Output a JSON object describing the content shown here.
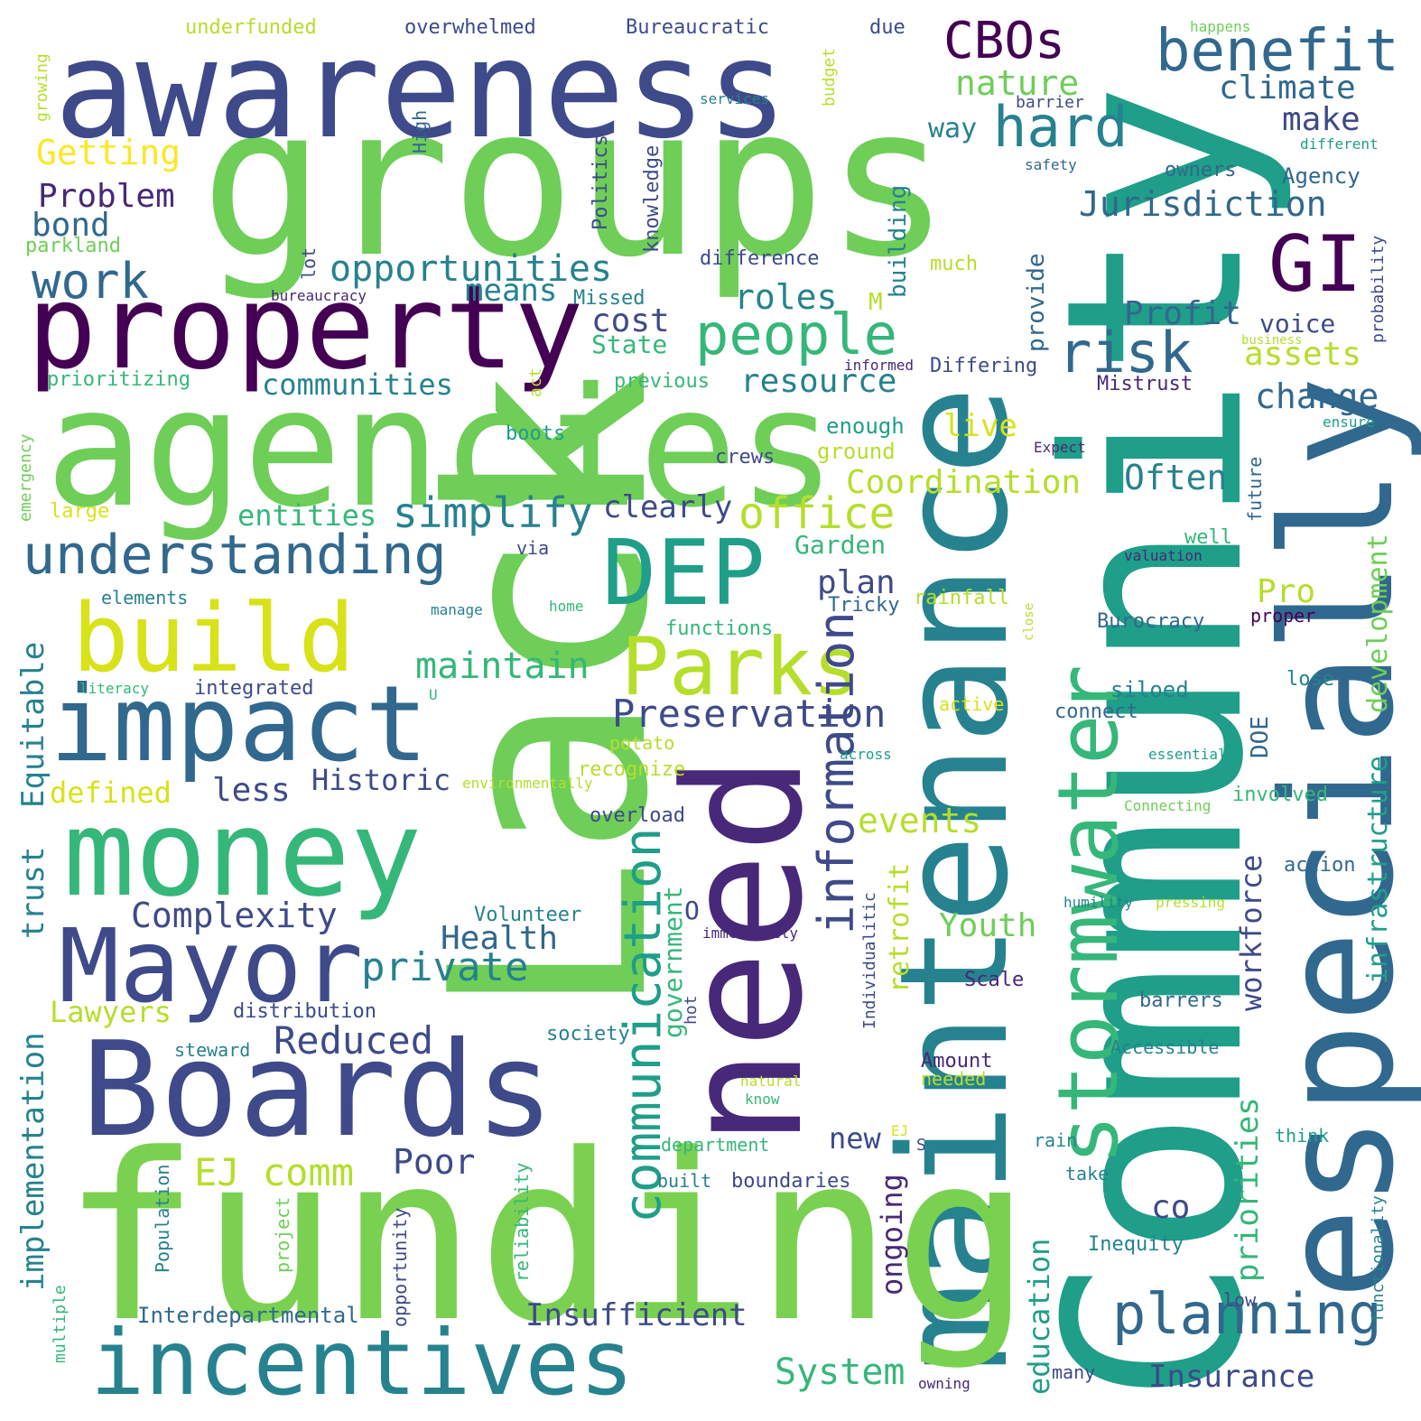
{
  "palette": [
    "#440154",
    "#482878",
    "#3e4a89",
    "#31688e",
    "#26828e",
    "#1f9e89",
    "#35b779",
    "#6ece58",
    "#b5de2b",
    "#fde725"
  ],
  "words": [
    {
      "text": "Community",
      "color": "#1f9e89"
    },
    {
      "text": "Lack",
      "color": "#6ece58"
    },
    {
      "text": "groups",
      "color": "#6ece58"
    },
    {
      "text": "maintenance",
      "color": "#26828e"
    },
    {
      "text": "funding",
      "color": "#7ad151"
    },
    {
      "text": "agencies",
      "color": "#6ece58"
    },
    {
      "text": "especially",
      "color": "#31688e"
    },
    {
      "text": "need",
      "color": "#482878"
    },
    {
      "text": "awareness",
      "color": "#3e4a89"
    },
    {
      "text": "Boards",
      "color": "#3e4a89"
    },
    {
      "text": "property",
      "color": "#440154"
    },
    {
      "text": "money",
      "color": "#35b779"
    },
    {
      "text": "impact",
      "color": "#31688e"
    },
    {
      "text": "Mayor",
      "color": "#3e4a89"
    },
    {
      "text": "incentives",
      "color": "#26828e"
    },
    {
      "text": "build",
      "color": "#d8e219"
    },
    {
      "text": "DEP",
      "color": "#1f9e89"
    },
    {
      "text": "Parks",
      "color": "#b5de2b"
    },
    {
      "text": "stormwater",
      "color": "#35b779"
    },
    {
      "text": "GI",
      "color": "#440154"
    },
    {
      "text": "benefit",
      "color": "#31688e"
    },
    {
      "text": "CBOs",
      "color": "#440154"
    },
    {
      "text": "hard",
      "color": "#26828e"
    },
    {
      "text": "risk",
      "color": "#31688e"
    },
    {
      "text": "people",
      "color": "#35b779"
    },
    {
      "text": "understanding",
      "color": "#31688e"
    },
    {
      "text": "information",
      "color": "#3e4a89"
    },
    {
      "text": "communication",
      "color": "#1f9e89"
    },
    {
      "text": "planning",
      "color": "#31688e"
    },
    {
      "text": "opportunities",
      "color": "#26828e"
    },
    {
      "text": "work",
      "color": "#31688e"
    },
    {
      "text": "Preservation",
      "color": "#3e4a89"
    },
    {
      "text": "simplify",
      "color": "#26828e"
    },
    {
      "text": "office",
      "color": "#b5de2b"
    },
    {
      "text": "private",
      "color": "#26828e"
    },
    {
      "text": "Coordination",
      "color": "#b5de2b"
    },
    {
      "text": "climate",
      "color": "#31688e"
    },
    {
      "text": "Jurisdiction",
      "color": "#31688e"
    },
    {
      "text": "nature",
      "color": "#6ece58"
    },
    {
      "text": "Getting",
      "color": "#fde725"
    },
    {
      "text": "Problem",
      "color": "#482878"
    },
    {
      "text": "bond",
      "color": "#31688e"
    },
    {
      "text": "make",
      "color": "#3e4a89"
    },
    {
      "text": "roles",
      "color": "#26828e"
    },
    {
      "text": "cost",
      "color": "#3e4a89"
    },
    {
      "text": "means",
      "color": "#26828e"
    },
    {
      "text": "Profit",
      "color": "#31688e"
    },
    {
      "text": "assets",
      "color": "#b5de2b"
    },
    {
      "text": "change",
      "color": "#31688e"
    },
    {
      "text": "resource",
      "color": "#26828e"
    },
    {
      "text": "communities",
      "color": "#26828e"
    },
    {
      "text": "entities",
      "color": "#35b779"
    },
    {
      "text": "Often",
      "color": "#26828e"
    },
    {
      "text": "live",
      "color": "#d8e219"
    },
    {
      "text": "clearly",
      "color": "#3e4a89"
    },
    {
      "text": "maintain",
      "color": "#35b779"
    },
    {
      "text": "Complexity",
      "color": "#3e4a89"
    },
    {
      "text": "Historic",
      "color": "#3e4a89"
    },
    {
      "text": "Equitable",
      "color": "#26828e"
    },
    {
      "text": "defined",
      "color": "#d8e219"
    },
    {
      "text": "less",
      "color": "#3e4a89"
    },
    {
      "text": "events",
      "color": "#b5de2b"
    },
    {
      "text": "Youth",
      "color": "#6ece58"
    },
    {
      "text": "Health",
      "color": "#31688e"
    },
    {
      "text": "Reduced",
      "color": "#3e4a89"
    },
    {
      "text": "EJ comm",
      "color": "#b5de2b"
    },
    {
      "text": "Poor",
      "color": "#3e4a89"
    },
    {
      "text": "System",
      "color": "#35b779"
    },
    {
      "text": "Insurance",
      "color": "#3e4a89"
    },
    {
      "text": "Insufficient",
      "color": "#3e4a89"
    },
    {
      "text": "Interdepartmental",
      "color": "#31688e"
    },
    {
      "text": "plan",
      "color": "#3e4a89"
    },
    {
      "text": "Pro",
      "color": "#b5de2b"
    },
    {
      "text": "Garden",
      "color": "#35b779"
    },
    {
      "text": "new",
      "color": "#3e4a89"
    },
    {
      "text": "co",
      "color": "#3e4a89"
    },
    {
      "text": "trust",
      "color": "#26828e"
    },
    {
      "text": "implementation",
      "color": "#26828e"
    },
    {
      "text": "Lawyers",
      "color": "#b5de2b"
    },
    {
      "text": "State",
      "color": "#35b779"
    },
    {
      "text": "building",
      "color": "#26828e"
    },
    {
      "text": "provide",
      "color": "#31688e"
    },
    {
      "text": "voice",
      "color": "#3e4a89"
    },
    {
      "text": "Differing",
      "color": "#3e4a89"
    },
    {
      "text": "Mistrust",
      "color": "#482878"
    },
    {
      "text": "way",
      "color": "#26828e"
    },
    {
      "text": "owners",
      "color": "#31688e"
    },
    {
      "text": "Agency",
      "color": "#31688e"
    },
    {
      "text": "Politics",
      "color": "#3e4a89"
    },
    {
      "text": "knowledge",
      "color": "#3e4a89"
    },
    {
      "text": "difference",
      "color": "#3e4a89"
    },
    {
      "text": "Missed",
      "color": "#26828e"
    },
    {
      "text": "bureaucracy",
      "color": "#482878"
    },
    {
      "text": "parkland",
      "color": "#6ece58"
    },
    {
      "text": "prioritizing",
      "color": "#35b779"
    },
    {
      "text": "previous",
      "color": "#35b779"
    },
    {
      "text": "informed",
      "color": "#482878"
    },
    {
      "text": "business",
      "color": "#b5de2b"
    },
    {
      "text": "probability",
      "color": "#3e4a89"
    },
    {
      "text": "ensure",
      "color": "#1f9e89"
    },
    {
      "text": "Expect",
      "color": "#482878"
    },
    {
      "text": "future",
      "color": "#31688e"
    },
    {
      "text": "development",
      "color": "#6ece58"
    },
    {
      "text": "infrastructure",
      "color": "#1f9e89"
    },
    {
      "text": "workforce",
      "color": "#3e4a89"
    },
    {
      "text": "priorities",
      "color": "#35b779"
    },
    {
      "text": "government",
      "color": "#35b779"
    },
    {
      "text": "retrofit",
      "color": "#b5de2b"
    },
    {
      "text": "ongoing",
      "color": "#482878"
    },
    {
      "text": "education",
      "color": "#1f9e89"
    },
    {
      "text": "underfunded",
      "color": "#b5de2b"
    },
    {
      "text": "overwhelmed",
      "color": "#3e4a89"
    },
    {
      "text": "Bureaucratic",
      "color": "#3e4a89"
    },
    {
      "text": "due",
      "color": "#3e4a89"
    },
    {
      "text": "budget",
      "color": "#b5de2b"
    },
    {
      "text": "services",
      "color": "#26828e"
    },
    {
      "text": "barrier",
      "color": "#3e4a89"
    },
    {
      "text": "High",
      "color": "#31688e"
    },
    {
      "text": "growing",
      "color": "#b5de2b"
    },
    {
      "text": "happens",
      "color": "#6ece58"
    },
    {
      "text": "different",
      "color": "#1f9e89"
    },
    {
      "text": "safety",
      "color": "#31688e"
    },
    {
      "text": "lot",
      "color": "#3e4a89"
    },
    {
      "text": "much",
      "color": "#b5de2b"
    },
    {
      "text": "M",
      "color": "#b5de2b"
    },
    {
      "text": "enough",
      "color": "#1f9e89"
    },
    {
      "text": "ground",
      "color": "#b5de2b"
    },
    {
      "text": "crews",
      "color": "#3e4a89"
    },
    {
      "text": "boots",
      "color": "#1f9e89"
    },
    {
      "text": "act",
      "color": "#b5de2b"
    },
    {
      "text": "emergency",
      "color": "#6ece58"
    },
    {
      "text": "large",
      "color": "#d8e219"
    },
    {
      "text": "elements",
      "color": "#26828e"
    },
    {
      "text": "literacy",
      "color": "#35b779"
    },
    {
      "text": "integrated",
      "color": "#3e4a89"
    },
    {
      "text": "via",
      "color": "#3e4a89"
    },
    {
      "text": "manage",
      "color": "#26828e"
    },
    {
      "text": "home",
      "color": "#35b779"
    },
    {
      "text": "functions",
      "color": "#35b779"
    },
    {
      "text": "Tricky",
      "color": "#31688e"
    },
    {
      "text": "rainfall",
      "color": "#b5de2b"
    },
    {
      "text": "close",
      "color": "#b5de2b"
    },
    {
      "text": "well",
      "color": "#35b779"
    },
    {
      "text": "valuation",
      "color": "#482878"
    },
    {
      "text": "proper",
      "color": "#440154"
    },
    {
      "text": "Burocracy",
      "color": "#31688e"
    },
    {
      "text": "lose",
      "color": "#26828e"
    },
    {
      "text": "siloed",
      "color": "#26828e"
    },
    {
      "text": "connect",
      "color": "#31688e"
    },
    {
      "text": "active",
      "color": "#d8e219"
    },
    {
      "text": "U",
      "color": "#35b779"
    },
    {
      "text": "potato",
      "color": "#b5de2b"
    },
    {
      "text": "recognize",
      "color": "#b5de2b"
    },
    {
      "text": "across",
      "color": "#1f9e89"
    },
    {
      "text": "environmentally",
      "color": "#b5de2b"
    },
    {
      "text": "DOE",
      "color": "#31688e"
    },
    {
      "text": "essential",
      "color": "#1f9e89"
    },
    {
      "text": "involved",
      "color": "#35b779"
    },
    {
      "text": "Connecting",
      "color": "#6ece58"
    },
    {
      "text": "overload",
      "color": "#3e4a89"
    },
    {
      "text": "action",
      "color": "#31688e"
    },
    {
      "text": "Volunteer",
      "color": "#26828e"
    },
    {
      "text": "O",
      "color": "#3e4a89"
    },
    {
      "text": "immediately",
      "color": "#482878"
    },
    {
      "text": "humility",
      "color": "#26828e"
    },
    {
      "text": "pressing",
      "color": "#b5de2b"
    },
    {
      "text": "Individualitic",
      "color": "#3e4a89"
    },
    {
      "text": "Scale",
      "color": "#482878"
    },
    {
      "text": "barrers",
      "color": "#31688e"
    },
    {
      "text": "hot",
      "color": "#3e4a89"
    },
    {
      "text": "distribution",
      "color": "#3e4a89"
    },
    {
      "text": "society",
      "color": "#26828e"
    },
    {
      "text": "steward",
      "color": "#26828e"
    },
    {
      "text": "Amount",
      "color": "#482878"
    },
    {
      "text": "needed",
      "color": "#b5de2b"
    },
    {
      "text": "Accessible",
      "color": "#26828e"
    },
    {
      "text": "natural",
      "color": "#b5de2b"
    },
    {
      "text": "know",
      "color": "#35b779"
    },
    {
      "text": "EJ",
      "color": "#d8e219"
    },
    {
      "text": "S",
      "color": "#3e4a89"
    },
    {
      "text": "think",
      "color": "#1f9e89"
    },
    {
      "text": "rain",
      "color": "#26828e"
    },
    {
      "text": "department",
      "color": "#35b779"
    },
    {
      "text": "built",
      "color": "#26828e"
    },
    {
      "text": "boundaries",
      "color": "#3e4a89"
    },
    {
      "text": "take",
      "color": "#26828e"
    },
    {
      "text": "Inequity",
      "color": "#26828e"
    },
    {
      "text": "functionality",
      "color": "#26828e"
    },
    {
      "text": "low",
      "color": "#3e4a89"
    },
    {
      "text": "many",
      "color": "#3e4a89"
    },
    {
      "text": "owning",
      "color": "#482878"
    },
    {
      "text": "reliability",
      "color": "#35b779"
    },
    {
      "text": "opportunity",
      "color": "#3e4a89"
    },
    {
      "text": "project",
      "color": "#6ece58"
    },
    {
      "text": "Population",
      "color": "#26828e"
    },
    {
      "text": "multiple",
      "color": "#35b779"
    }
  ]
}
